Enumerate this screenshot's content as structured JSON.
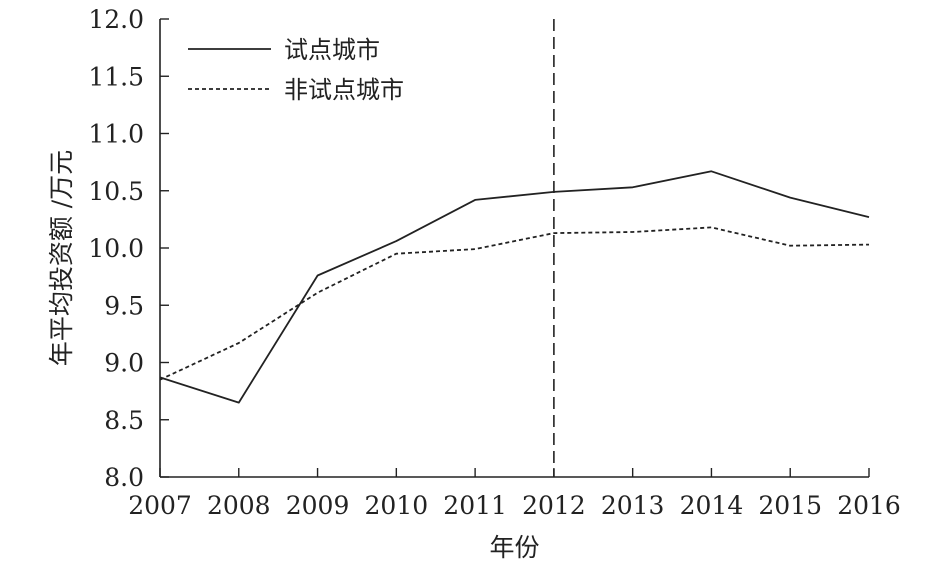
{
  "chart_data": {
    "type": "line",
    "x": [
      2007,
      2008,
      2009,
      2010,
      2011,
      2012,
      2013,
      2014,
      2015,
      2016
    ],
    "x_tick_labels": [
      "2007",
      "2008",
      "2009",
      "2010",
      "2011",
      "2012",
      "2013",
      "2014",
      "2015",
      "2016"
    ],
    "series": [
      {
        "name": "试点城市",
        "style": "solid",
        "values": [
          8.87,
          8.65,
          9.76,
          10.06,
          10.42,
          10.49,
          10.53,
          10.67,
          10.44,
          10.27
        ]
      },
      {
        "name": "非试点城市",
        "style": "dotted",
        "values": [
          8.85,
          9.17,
          9.61,
          9.95,
          9.99,
          10.13,
          10.14,
          10.18,
          10.02,
          10.03
        ]
      }
    ],
    "xlabel": "年份",
    "ylabel": "年平均投资额 /万元",
    "ylim": [
      8.0,
      12.0
    ],
    "y_ticks": [
      8.0,
      8.5,
      9.0,
      9.5,
      10.0,
      10.5,
      11.0,
      11.5,
      12.0
    ],
    "y_tick_labels": [
      "8.0",
      "8.5",
      "9.0",
      "9.5",
      "10.0",
      "10.5",
      "11.0",
      "11.5",
      "12.0"
    ],
    "reference_line": {
      "x": 2012,
      "style": "dashed"
    },
    "grid": false,
    "legend_position": "top-left",
    "line_color": "#222222"
  }
}
